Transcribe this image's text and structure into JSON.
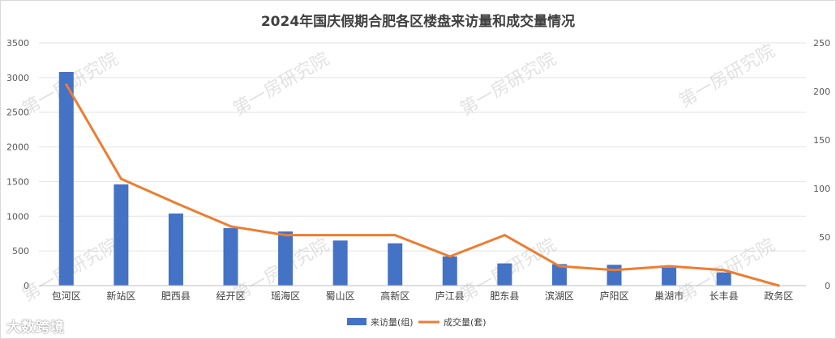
{
  "chart_data": {
    "type": "bar",
    "title": "2024年国庆假期合肥各区楼盘来访量和成交量情况",
    "categories": [
      "包河区",
      "新站区",
      "肥西县",
      "经开区",
      "瑶海区",
      "蜀山区",
      "高新区",
      "庐江县",
      "肥东县",
      "滨湖区",
      "庐阳区",
      "巢湖市",
      "长丰县",
      "政务区"
    ],
    "series": [
      {
        "name": "来访量(组)",
        "type": "bar",
        "axis": "left",
        "color": "#4472c4",
        "values": [
          3080,
          1460,
          1040,
          830,
          780,
          650,
          610,
          420,
          320,
          310,
          300,
          260,
          190,
          0
        ]
      },
      {
        "name": "成交量(套)",
        "type": "line",
        "axis": "right",
        "color": "#ed7d31",
        "values": [
          207,
          110,
          85,
          61,
          52,
          52,
          52,
          30,
          52,
          20,
          16,
          20,
          16,
          0
        ]
      }
    ],
    "y_left": {
      "min": 0,
      "max": 3500,
      "step": 500,
      "ticks": [
        "0",
        "500",
        "1000",
        "1500",
        "2000",
        "2500",
        "3000",
        "3500"
      ]
    },
    "y_right": {
      "min": 0,
      "max": 250,
      "step": 50,
      "ticks": [
        "0",
        "50",
        "100",
        "150",
        "200",
        "250"
      ]
    },
    "grid": true,
    "legend_position": "bottom"
  },
  "watermark_text": "第一房研究院",
  "corner_logo_text": "大数跨境"
}
